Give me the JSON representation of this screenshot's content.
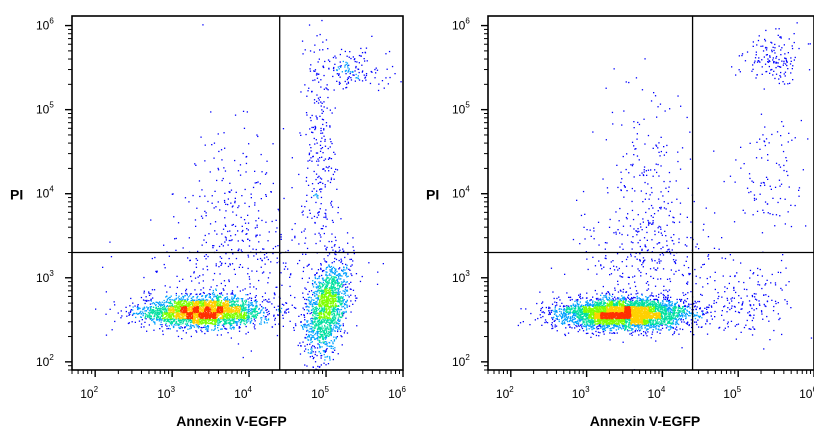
{
  "chart_data": [
    {
      "type": "scatter",
      "subtype": "flow-cytometry-density-dot-plot",
      "xlabel": "Annexin V-EGFP",
      "ylabel": "PI",
      "xscale": "log",
      "yscale": "log",
      "xlim": [
        50,
        1000000
      ],
      "ylim": [
        80,
        1300000
      ],
      "xticks": [
        100,
        1000,
        10000,
        100000,
        1000000
      ],
      "yticks": [
        100,
        1000,
        10000,
        100000,
        1000000
      ],
      "tick_base": "10",
      "xtick_exponents": [
        "2",
        "3",
        "4",
        "5",
        "6"
      ],
      "ytick_exponents": [
        "2",
        "3",
        "4",
        "5",
        "6"
      ],
      "gate_x": 25000,
      "gate_y": 2000,
      "grid": false,
      "legend": "none",
      "populations": [
        {
          "x_center": 2500,
          "y_center": 400,
          "x_log_spread": 0.4,
          "y_log_spread": 0.09,
          "fraction": 0.55
        },
        {
          "x_center": 100000,
          "y_center": 450,
          "x_log_spread": 0.14,
          "y_log_spread": 0.25,
          "tilt": 0.9,
          "fraction": 0.28
        },
        {
          "x_center": 80000,
          "y_center": 30000,
          "x_log_spread": 0.12,
          "y_log_spread": 0.7,
          "fraction": 0.05
        },
        {
          "x_center": 200000,
          "y_center": 300000,
          "x_log_spread": 0.25,
          "y_log_spread": 0.12,
          "fraction": 0.03
        },
        {
          "x_center": 6000,
          "y_center": 5000,
          "x_log_spread": 0.35,
          "y_log_spread": 0.6,
          "fraction": 0.05
        },
        {
          "x_center": 8000,
          "y_center": 1500,
          "x_log_spread": 0.7,
          "y_log_spread": 0.3,
          "fraction": 0.04
        }
      ]
    },
    {
      "type": "scatter",
      "subtype": "flow-cytometry-density-dot-plot",
      "xlabel": "Annexin V-EGFP",
      "ylabel": "PI",
      "xscale": "log",
      "yscale": "log",
      "xlim": [
        50,
        1000000
      ],
      "ylim": [
        80,
        1300000
      ],
      "xticks": [
        100,
        1000,
        10000,
        100000,
        1000000
      ],
      "yticks": [
        100,
        1000,
        10000,
        100000,
        1000000
      ],
      "tick_base": "10",
      "xtick_exponents": [
        "2",
        "3",
        "4",
        "5",
        "6"
      ],
      "ytick_exponents": [
        "2",
        "3",
        "4",
        "5",
        "6"
      ],
      "gate_x": 25000,
      "gate_y": 2000,
      "grid": false,
      "legend": "none",
      "populations": [
        {
          "x_center": 3000,
          "y_center": 380,
          "x_log_spread": 0.42,
          "y_log_spread": 0.09,
          "fraction": 0.82
        },
        {
          "x_center": 150000,
          "y_center": 500,
          "x_log_spread": 0.25,
          "y_log_spread": 0.2,
          "fraction": 0.03
        },
        {
          "x_center": 300000,
          "y_center": 400000,
          "x_log_spread": 0.2,
          "y_log_spread": 0.15,
          "fraction": 0.03
        },
        {
          "x_center": 250000,
          "y_center": 15000,
          "x_log_spread": 0.2,
          "y_log_spread": 0.35,
          "fraction": 0.02
        },
        {
          "x_center": 6000,
          "y_center": 8000,
          "x_log_spread": 0.3,
          "y_log_spread": 0.7,
          "fraction": 0.05
        },
        {
          "x_center": 10000,
          "y_center": 1500,
          "x_log_spread": 0.6,
          "y_log_spread": 0.3,
          "fraction": 0.05
        }
      ]
    }
  ]
}
